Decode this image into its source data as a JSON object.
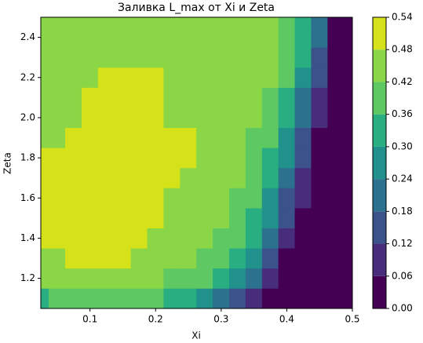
{
  "chart_data": {
    "type": "contourf",
    "title": "Заливка L_max от Xi и Zeta",
    "xlabel": "Xi",
    "ylabel": "Zeta",
    "xlim": [
      0.025,
      0.5
    ],
    "ylim": [
      1.05,
      2.5
    ],
    "xticks": [
      0.1,
      0.2,
      0.3,
      0.4,
      0.5
    ],
    "yticks": [
      1.2,
      1.4,
      1.6,
      1.8,
      {
        "value": 2.0,
        "label": "2.0"
      },
      2.2,
      2.4
    ],
    "levels": [
      {
        "value": 0,
        "label": "0.00"
      },
      0.06,
      0.12,
      0.18,
      {
        "value": 0.24,
        "label": "0.24"
      },
      {
        "value": 0.3,
        "label": "0.30"
      },
      0.36,
      0.42,
      0.48,
      0.54
    ],
    "colors": [
      "#440154",
      "#472d7b",
      "#3b528b",
      "#2c728e",
      "#21918c",
      "#28ae80",
      "#5ec962",
      "#8bd646",
      "#d5e21a"
    ],
    "x": [
      0.025,
      0.05,
      0.075,
      0.1,
      0.125,
      0.15,
      0.175,
      0.2,
      0.225,
      0.25,
      0.275,
      0.3,
      0.325,
      0.35,
      0.375,
      0.4,
      0.425,
      0.45,
      0.475,
      0.5
    ],
    "y": [
      1.1,
      1.2,
      1.3,
      1.4,
      1.5,
      1.6,
      1.7,
      1.8,
      1.9,
      2.0,
      2.1,
      2.2,
      2.3,
      2.4,
      2.5
    ],
    "z": [
      [
        0.33,
        0.39,
        0.39,
        0.39,
        0.39,
        0.39,
        0.39,
        0.39,
        0.33,
        0.33,
        0.27,
        0.21,
        0.15,
        0.09,
        0.03,
        0.03,
        0.03,
        0.03,
        0.03,
        0.03
      ],
      [
        0.45,
        0.45,
        0.45,
        0.45,
        0.45,
        0.45,
        0.45,
        0.45,
        0.39,
        0.39,
        0.39,
        0.33,
        0.27,
        0.21,
        0.09,
        0.03,
        0.03,
        0.03,
        0.03,
        0.03
      ],
      [
        0.45,
        0.45,
        0.51,
        0.51,
        0.51,
        0.51,
        0.45,
        0.45,
        0.45,
        0.45,
        0.39,
        0.39,
        0.33,
        0.27,
        0.15,
        0.03,
        0.03,
        0.03,
        0.03,
        0.03
      ],
      [
        0.51,
        0.51,
        0.51,
        0.51,
        0.51,
        0.51,
        0.51,
        0.45,
        0.45,
        0.45,
        0.45,
        0.39,
        0.39,
        0.33,
        0.21,
        0.09,
        0.03,
        0.03,
        0.03,
        0.03
      ],
      [
        0.51,
        0.51,
        0.51,
        0.51,
        0.51,
        0.51,
        0.51,
        0.51,
        0.45,
        0.45,
        0.45,
        0.45,
        0.39,
        0.33,
        0.27,
        0.15,
        0.03,
        0.03,
        0.03,
        0.03
      ],
      [
        0.51,
        0.51,
        0.51,
        0.51,
        0.51,
        0.51,
        0.51,
        0.51,
        0.45,
        0.45,
        0.45,
        0.45,
        0.39,
        0.39,
        0.27,
        0.15,
        0.09,
        0.03,
        0.03,
        0.03
      ],
      [
        0.51,
        0.51,
        0.51,
        0.51,
        0.51,
        0.51,
        0.51,
        0.51,
        0.51,
        0.45,
        0.45,
        0.45,
        0.45,
        0.39,
        0.33,
        0.21,
        0.09,
        0.03,
        0.03,
        0.03
      ],
      [
        0.51,
        0.51,
        0.51,
        0.51,
        0.51,
        0.51,
        0.51,
        0.51,
        0.51,
        0.51,
        0.45,
        0.45,
        0.45,
        0.39,
        0.33,
        0.27,
        0.15,
        0.03,
        0.03,
        0.03
      ],
      [
        0.45,
        0.45,
        0.51,
        0.51,
        0.51,
        0.51,
        0.51,
        0.51,
        0.51,
        0.51,
        0.45,
        0.45,
        0.45,
        0.39,
        0.39,
        0.27,
        0.15,
        0.03,
        0.03,
        0.03
      ],
      [
        0.45,
        0.45,
        0.45,
        0.51,
        0.51,
        0.51,
        0.51,
        0.51,
        0.45,
        0.45,
        0.45,
        0.45,
        0.45,
        0.45,
        0.39,
        0.33,
        0.21,
        0.09,
        0.03,
        0.03
      ],
      [
        0.45,
        0.45,
        0.45,
        0.51,
        0.51,
        0.51,
        0.51,
        0.51,
        0.45,
        0.45,
        0.45,
        0.45,
        0.45,
        0.45,
        0.39,
        0.33,
        0.21,
        0.09,
        0.03,
        0.03
      ],
      [
        0.45,
        0.45,
        0.45,
        0.45,
        0.51,
        0.51,
        0.51,
        0.51,
        0.45,
        0.45,
        0.45,
        0.45,
        0.45,
        0.45,
        0.45,
        0.39,
        0.27,
        0.15,
        0.03,
        0.03
      ],
      [
        0.45,
        0.45,
        0.45,
        0.45,
        0.45,
        0.45,
        0.45,
        0.45,
        0.45,
        0.45,
        0.45,
        0.45,
        0.45,
        0.45,
        0.45,
        0.39,
        0.33,
        0.15,
        0.03,
        0.03
      ],
      [
        0.45,
        0.45,
        0.45,
        0.45,
        0.45,
        0.45,
        0.45,
        0.45,
        0.45,
        0.45,
        0.45,
        0.45,
        0.45,
        0.45,
        0.45,
        0.39,
        0.33,
        0.21,
        0.03,
        0.03
      ],
      [
        0.45,
        0.45,
        0.45,
        0.45,
        0.45,
        0.45,
        0.45,
        0.45,
        0.45,
        0.45,
        0.45,
        0.45,
        0.45,
        0.45,
        0.45,
        0.39,
        0.33,
        0.21,
        0.03,
        0.03
      ]
    ]
  }
}
